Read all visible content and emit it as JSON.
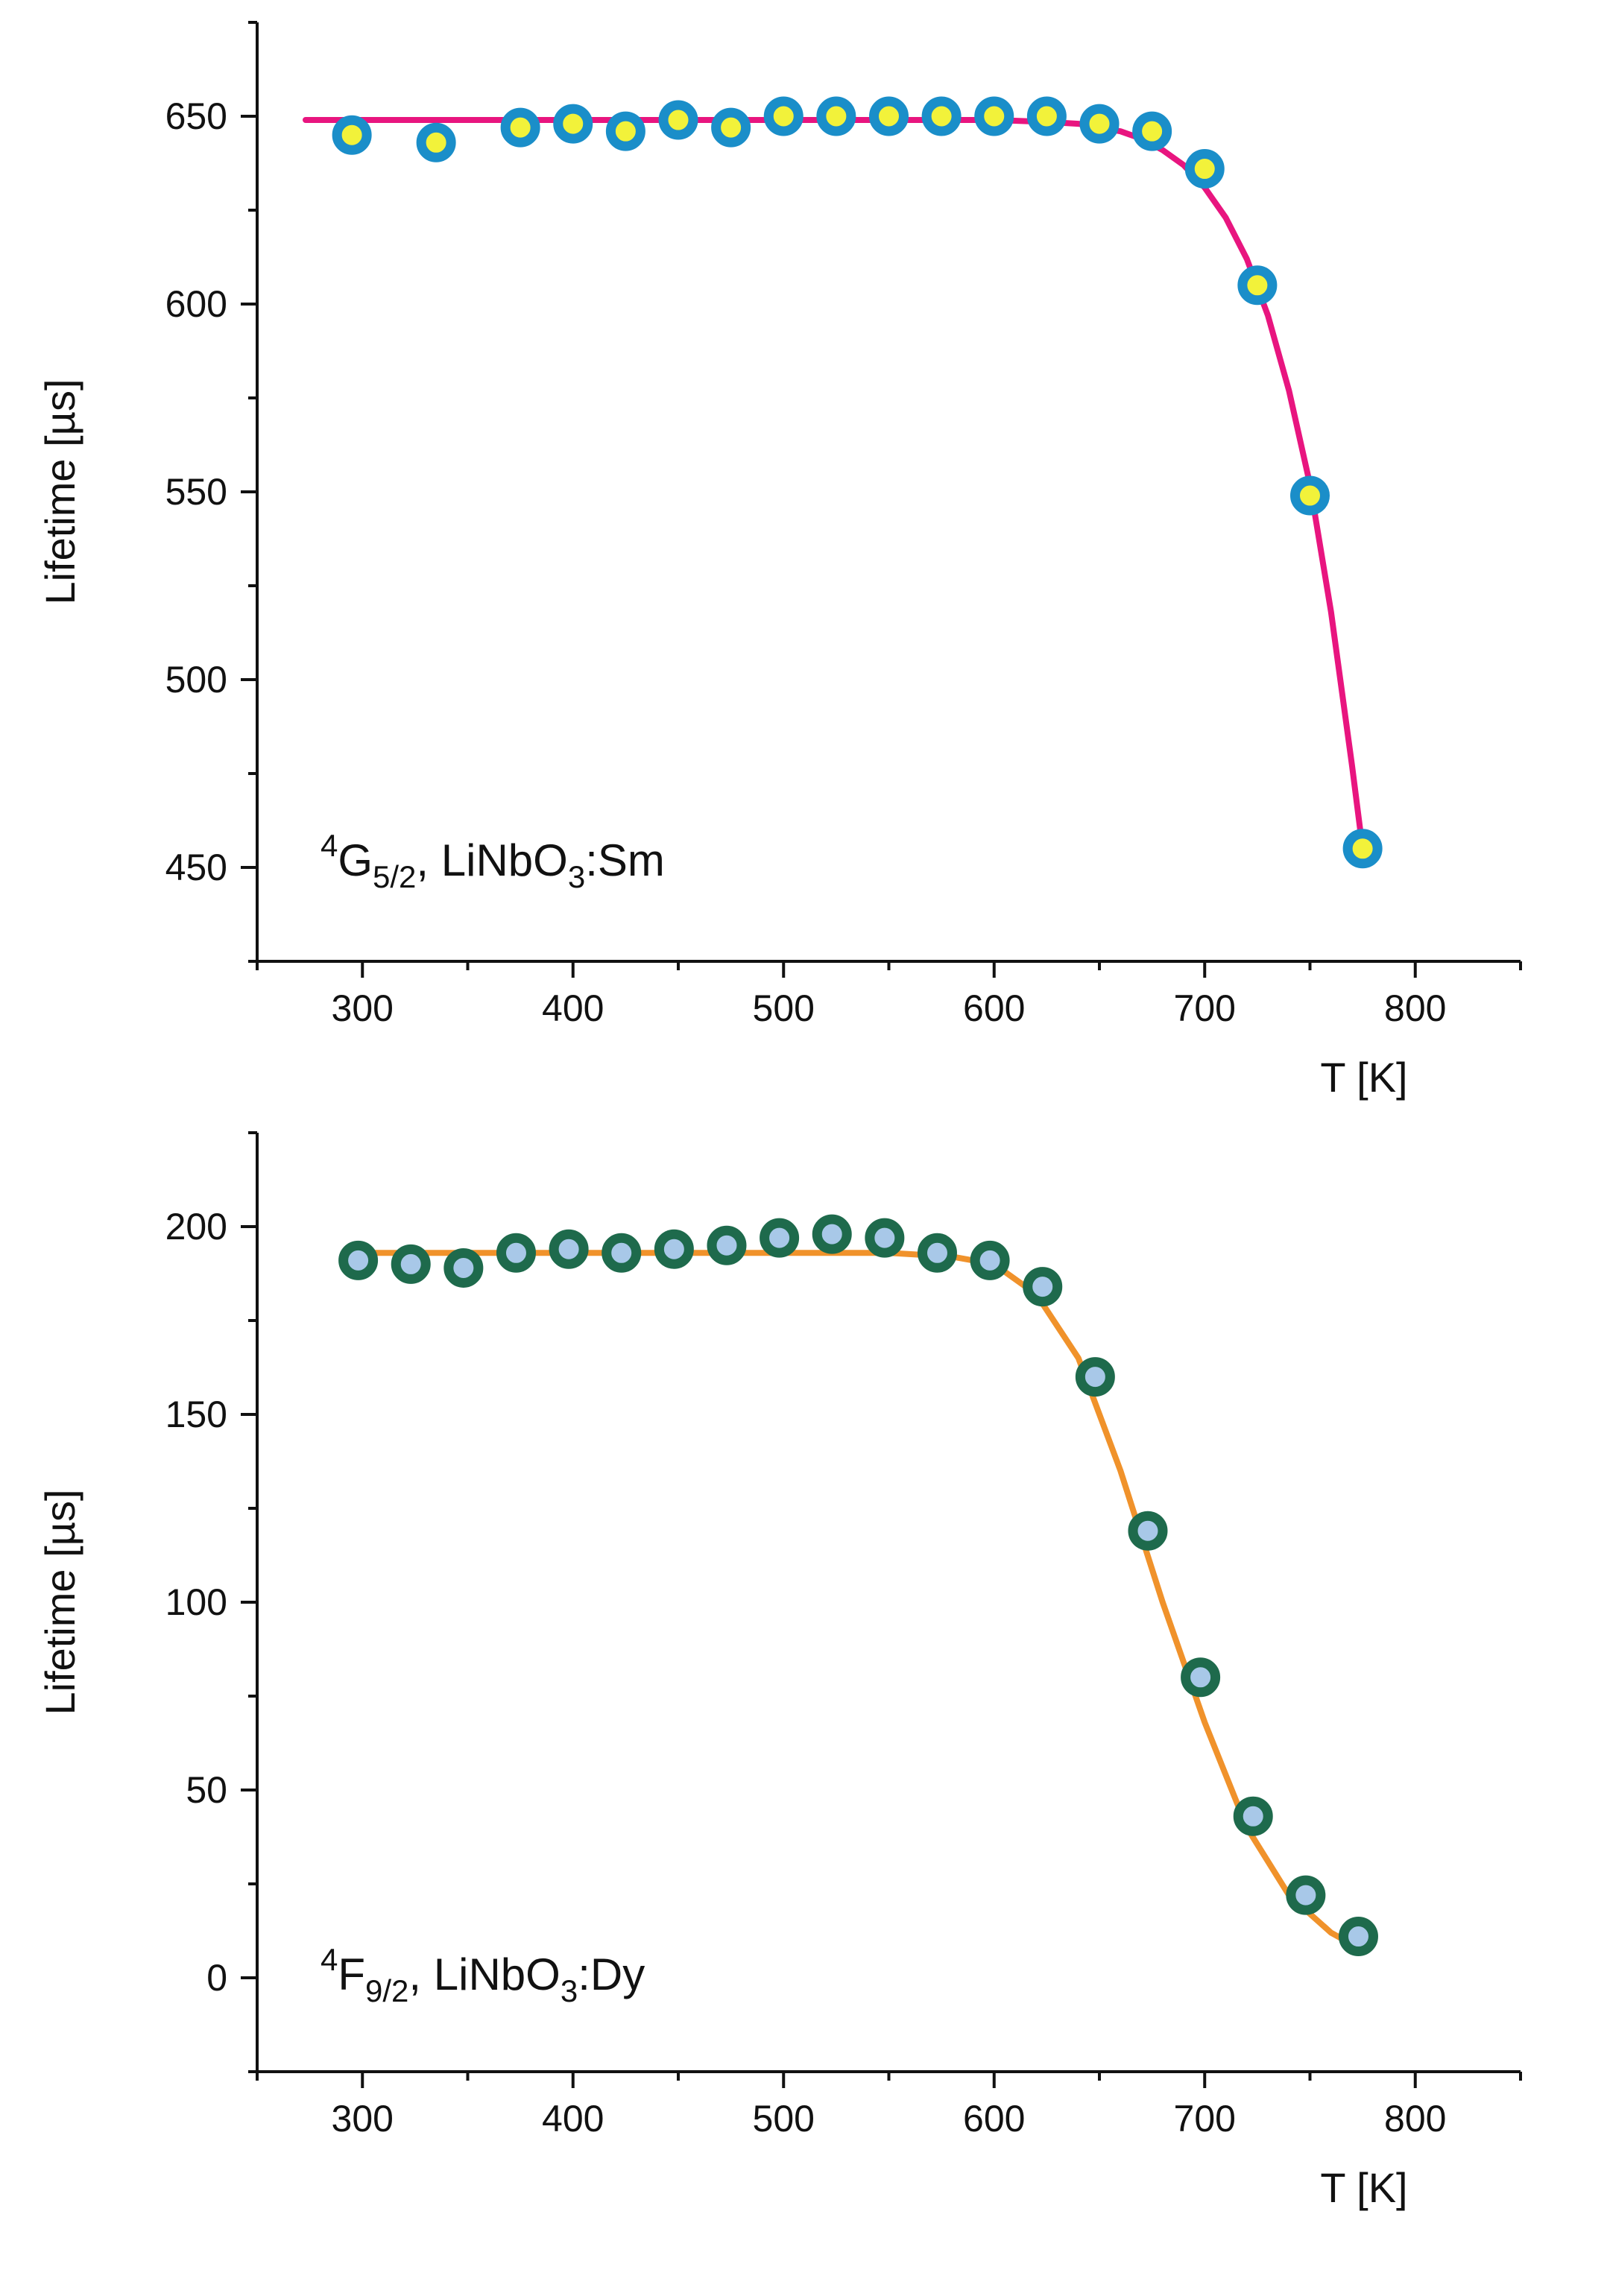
{
  "chart_data": [
    {
      "type": "scatter",
      "annotation": {
        "sup": "4",
        "main": "G",
        "sub": "5/2",
        "host": ", LiNbO",
        "host_sub": "3",
        "dopant": ":Sm"
      },
      "xlabel": "T [K]",
      "ylabel": "Lifetime [µs]",
      "xlim": [
        250,
        850
      ],
      "ylim": [
        425,
        675
      ],
      "xticks": [
        300,
        400,
        500,
        600,
        700,
        800
      ],
      "yticks": [
        450,
        500,
        550,
        600,
        650
      ],
      "colors": {
        "marker_edge": "#1a8ec9",
        "marker_fill": "#f2f23a",
        "fit": "#e8157f"
      },
      "series": [
        {
          "name": "data",
          "x": [
            295,
            335,
            375,
            400,
            425,
            450,
            475,
            500,
            525,
            550,
            575,
            600,
            625,
            650,
            675,
            700,
            725,
            750,
            775
          ],
          "y": [
            645,
            643,
            647,
            648,
            646,
            649,
            647,
            650,
            650,
            650,
            650,
            650,
            650,
            648,
            646,
            636,
            605,
            549,
            455
          ]
        },
        {
          "name": "fit",
          "x": [
            273,
            300,
            350,
            400,
            450,
            500,
            550,
            600,
            625,
            640,
            650,
            660,
            670,
            680,
            690,
            700,
            710,
            720,
            730,
            740,
            750,
            760,
            770,
            775
          ],
          "y": [
            649,
            649,
            649,
            649,
            649,
            649,
            649,
            649,
            648.5,
            648,
            647,
            646,
            644,
            641,
            637,
            631,
            623,
            612,
            597,
            577,
            552,
            518,
            477,
            455
          ]
        }
      ]
    },
    {
      "type": "scatter",
      "annotation": {
        "sup": "4",
        "main": "F",
        "sub": "9/2",
        "host": ", LiNbO",
        "host_sub": "3",
        "dopant": ":Dy"
      },
      "xlabel": "T [K]",
      "ylabel": "Lifetime [µs]",
      "xlim": [
        250,
        850
      ],
      "ylim": [
        -25,
        225
      ],
      "xticks": [
        300,
        400,
        500,
        600,
        700,
        800
      ],
      "yticks": [
        0,
        50,
        100,
        150,
        200
      ],
      "colors": {
        "marker_edge": "#1e6a4c",
        "marker_fill": "#a8c8e8",
        "fit": "#f0922b"
      },
      "series": [
        {
          "name": "data",
          "x": [
            298,
            323,
            348,
            373,
            398,
            423,
            448,
            473,
            498,
            523,
            548,
            573,
            598,
            623,
            648,
            673,
            698,
            723,
            748,
            773
          ],
          "y": [
            191,
            190,
            189,
            193,
            194,
            193,
            194,
            195,
            197,
            198,
            197,
            193,
            191,
            184,
            160,
            119,
            80,
            43,
            22,
            11
          ]
        },
        {
          "name": "fit",
          "x": [
            298,
            350,
            400,
            450,
            500,
            550,
            580,
            600,
            620,
            640,
            660,
            680,
            700,
            720,
            740,
            760,
            773
          ],
          "y": [
            193,
            193,
            193,
            193,
            193,
            193,
            192,
            190,
            182,
            165,
            135,
            100,
            68,
            40,
            22,
            12,
            8
          ]
        }
      ]
    }
  ]
}
